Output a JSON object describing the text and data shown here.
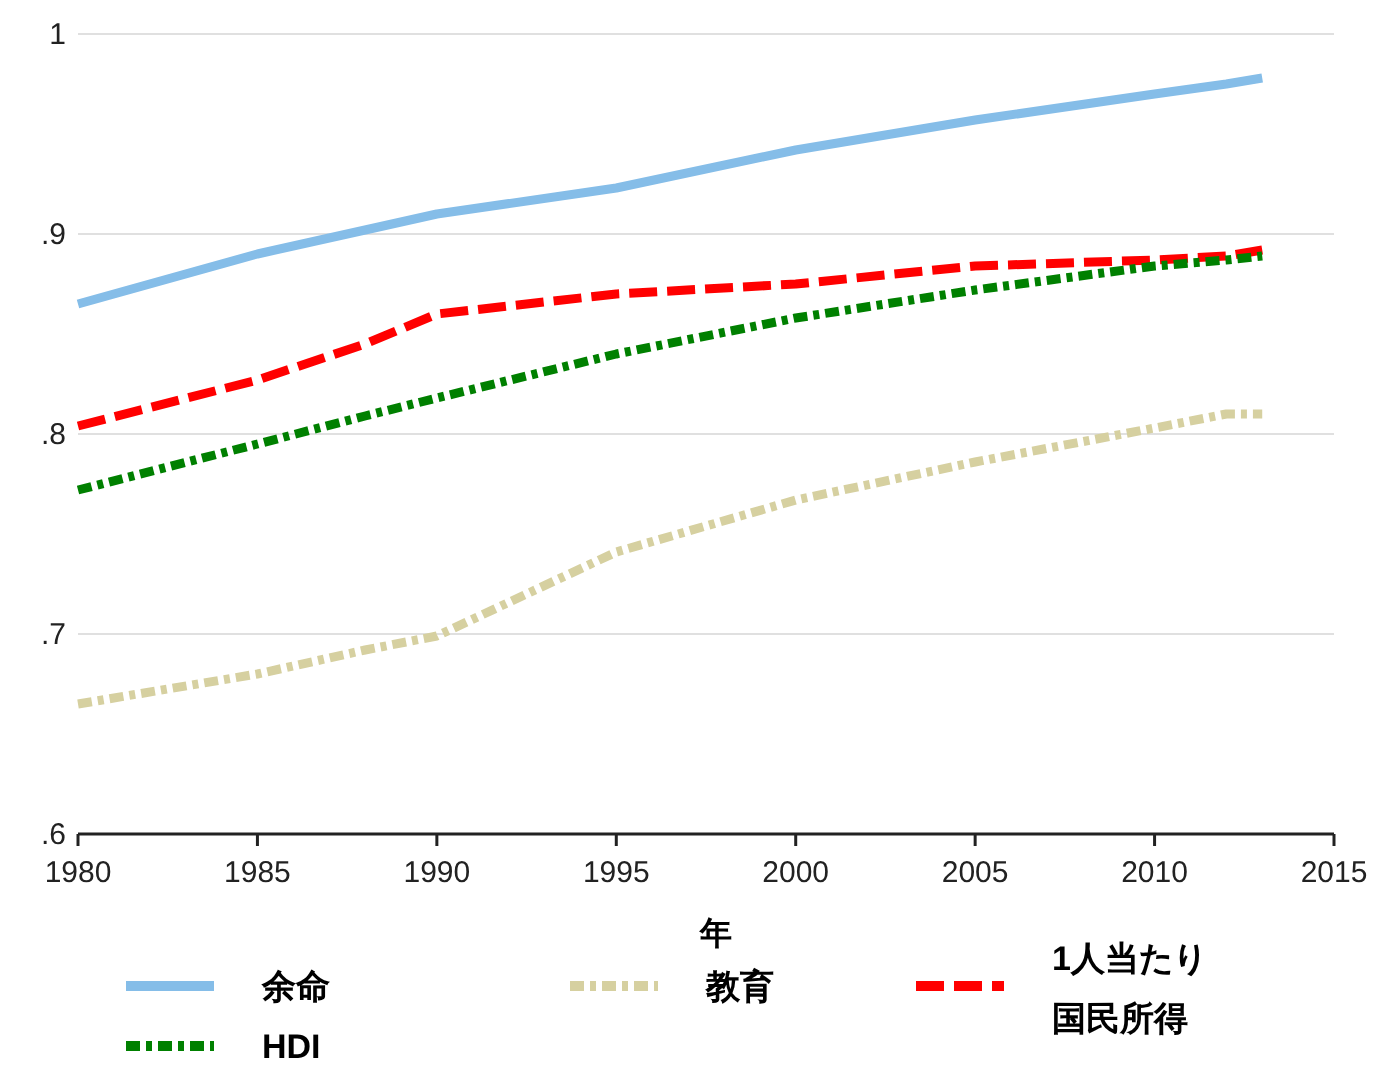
{
  "chart_data": {
    "type": "line",
    "xlabel": "年",
    "x": [
      1980,
      1985,
      1988,
      1990,
      1995,
      2000,
      2005,
      2010,
      2012,
      2013
    ],
    "xlim": [
      1980,
      2015
    ],
    "xticks": [
      1980,
      1985,
      1990,
      1995,
      2000,
      2005,
      2010,
      2015
    ],
    "ylim": [
      0.6,
      1
    ],
    "yticks": [
      {
        "value": 0.6,
        "label": ".6"
      },
      {
        "value": 0.7,
        "label": ".7"
      },
      {
        "value": 0.8,
        "label": ".8"
      },
      {
        "value": 0.9,
        "label": ".9"
      },
      1
    ],
    "grid": "y",
    "legend": "bottom",
    "series": [
      {
        "name": "余命",
        "color": "#85bde8",
        "line_style": "solid",
        "values": [
          0.865,
          0.89,
          0.902,
          0.91,
          0.923,
          0.942,
          0.957,
          0.97,
          0.975,
          0.978
        ]
      },
      {
        "name": "教育",
        "color": "#d6d0a0",
        "line_style": "dotted",
        "values": [
          0.665,
          0.68,
          0.692,
          0.699,
          0.741,
          0.767,
          0.786,
          0.803,
          0.81,
          0.81
        ]
      },
      {
        "name": "1人当たり国民所得",
        "color": "#ff0000",
        "line_style": "dashed",
        "values": [
          0.804,
          0.827,
          0.845,
          0.86,
          0.87,
          0.875,
          0.884,
          0.887,
          0.889,
          0.892
        ]
      },
      {
        "name": "HDI",
        "color": "#008000",
        "line_style": "dotted",
        "values": [
          0.772,
          0.795,
          0.809,
          0.818,
          0.84,
          0.858,
          0.872,
          0.884,
          0.887,
          0.889
        ]
      }
    ]
  }
}
